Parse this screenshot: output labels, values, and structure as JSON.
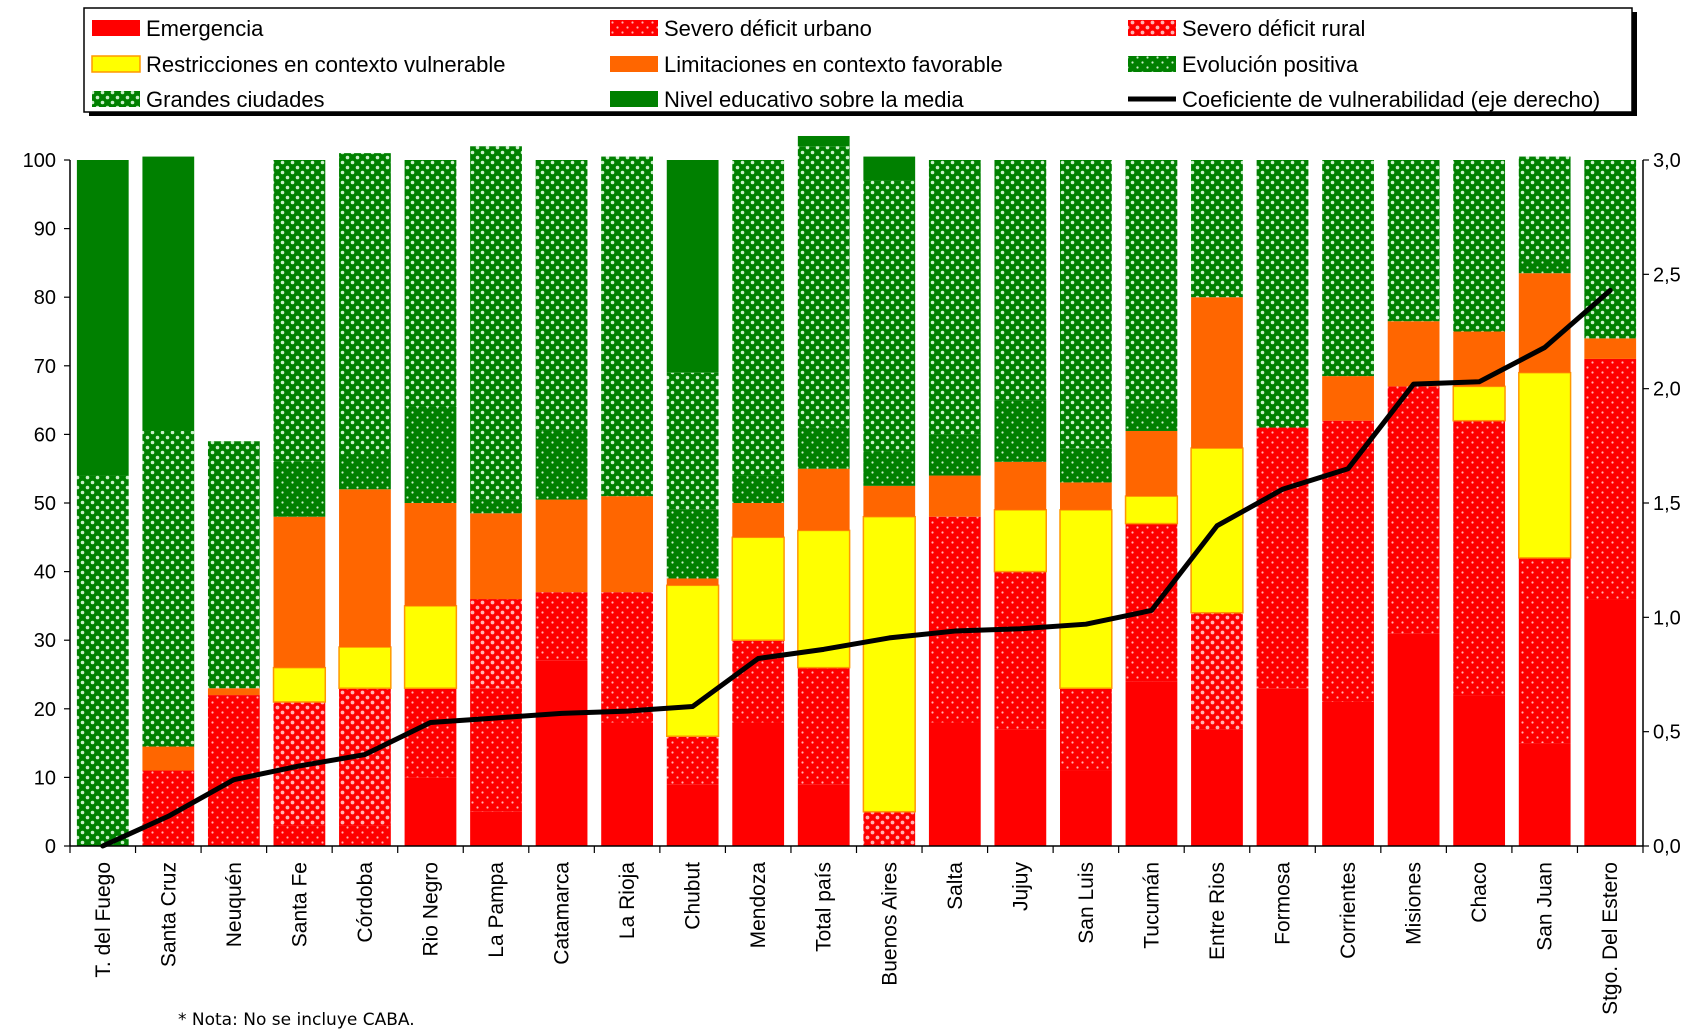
{
  "colors": {
    "red": "#ff0000",
    "orange": "#ff6600",
    "yellow": "#ffff00",
    "yellow_border": "#ff9900",
    "green": "#008000",
    "dot_light": "#ffb3b3",
    "dot_green": "#c8f0c8",
    "line": "#000000"
  },
  "note": "* Nota: No se incluye  CABA.",
  "chart_data": {
    "type": "bar",
    "stacked": true,
    "categories": [
      "T. del Fuego",
      "Santa Cruz",
      "Neuquén",
      "Santa Fe",
      "Córdoba",
      "Rio Negro",
      "La Pampa",
      "Catamarca",
      "La Rioja",
      "Chubut",
      "Mendoza",
      "Total país",
      "Buenos Aires",
      "Salta",
      "Jujuy",
      "San Luis",
      "Tucumán",
      "Entre Rios",
      "Formosa",
      "Corrientes",
      "Misiones",
      "Chaco",
      "San Juan",
      "Stgo. Del Estero"
    ],
    "ylim": [
      0,
      100
    ],
    "y_ticks": [
      "0",
      "10",
      "20",
      "30",
      "40",
      "50",
      "60",
      "70",
      "80",
      "90",
      "100"
    ],
    "y2lim": [
      0,
      3.0
    ],
    "y2_ticks": [
      "0,0",
      "0,5",
      "1,0",
      "1,5",
      "2,0",
      "2,5",
      "3,0"
    ],
    "legend_position": "top",
    "series": [
      {
        "name": "Emergencia",
        "fill": "red",
        "pattern": "solid",
        "values": [
          0,
          0,
          0,
          0,
          0,
          10,
          5,
          27,
          18,
          9,
          18,
          9,
          0,
          18,
          17,
          11,
          24,
          17,
          23,
          21,
          31,
          22,
          15,
          36
        ]
      },
      {
        "name": "Severo déficit urbano",
        "fill": "red",
        "pattern": "dots",
        "values": [
          0,
          11,
          22,
          3,
          3,
          13,
          18,
          10,
          19,
          7,
          12,
          17,
          0,
          30,
          23,
          12,
          23,
          0,
          38,
          41,
          36,
          40,
          27,
          35
        ]
      },
      {
        "name": "Severo déficit rural",
        "fill": "red",
        "pattern": "light-dots",
        "values": [
          0,
          0,
          0,
          18,
          20,
          0,
          13,
          0,
          0,
          0,
          0,
          0,
          5,
          0,
          0,
          0,
          0,
          17,
          0,
          0,
          0,
          0,
          0,
          0
        ]
      },
      {
        "name": "Restricciones en contexto vulnerable",
        "fill": "yellow",
        "pattern": "solid",
        "values": [
          0,
          0,
          0,
          5,
          6,
          12,
          0,
          0,
          0,
          22,
          15,
          20,
          43,
          0,
          9,
          26,
          4,
          24,
          0,
          0,
          0,
          5,
          27,
          0
        ]
      },
      {
        "name": "Limitaciones en contexto favorable",
        "fill": "orange",
        "pattern": "solid",
        "values": [
          0,
          3.5,
          1,
          22,
          23,
          15,
          12.5,
          13.5,
          14,
          1,
          5,
          9,
          4.5,
          6,
          7,
          4,
          9.5,
          22,
          0,
          6.5,
          9.5,
          8,
          14.5,
          3
        ]
      },
      {
        "name": "Evolución positiva",
        "fill": "green",
        "pattern": "dots",
        "values": [
          0,
          0,
          0,
          8,
          5,
          14,
          2,
          10,
          0,
          10,
          4,
          6,
          5,
          6,
          9,
          5,
          4,
          0,
          0,
          0,
          0,
          0,
          2,
          0
        ]
      },
      {
        "name": "Grandes ciudades",
        "fill": "green",
        "pattern": "light-dots",
        "values": [
          54,
          46,
          36,
          44,
          44,
          36,
          51.5,
          39.5,
          49.5,
          20,
          46,
          41,
          39.5,
          40,
          35,
          42,
          35.5,
          20,
          39,
          31.5,
          23.5,
          25,
          15,
          26
        ]
      },
      {
        "name": "Nivel educativo sobre la media",
        "fill": "green",
        "pattern": "solid",
        "values": [
          46,
          40,
          0,
          0,
          0,
          0,
          0,
          0,
          0,
          31,
          0,
          1.5,
          3.5,
          0,
          0,
          0,
          0,
          0,
          0,
          0,
          0,
          0,
          0,
          0
        ]
      }
    ],
    "line_series": {
      "name": "Coeficiente de vulnerabilidad (eje derecho)",
      "axis": "right",
      "values": [
        0.0,
        0.13,
        0.29,
        0.35,
        0.4,
        0.54,
        0.56,
        0.58,
        0.59,
        0.61,
        0.82,
        0.86,
        0.91,
        0.94,
        0.95,
        0.97,
        1.03,
        1.4,
        1.56,
        1.65,
        2.02,
        2.03,
        2.18,
        2.43
      ]
    }
  }
}
